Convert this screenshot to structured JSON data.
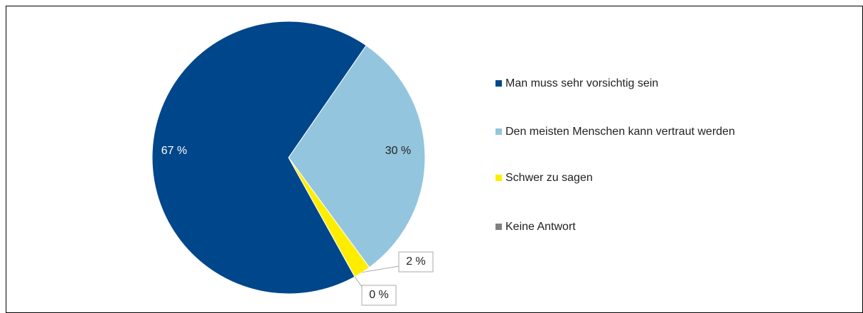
{
  "chart_data": {
    "type": "pie",
    "series": [
      {
        "name": "Man muss sehr vorsichtig sein",
        "color": "#00468b",
        "values": [
          67
        ],
        "value_labels": [
          "67 %"
        ]
      },
      {
        "name": "Den meisten Menschen kann vertraut werden",
        "color": "#93c5de",
        "values": [
          30
        ],
        "value_labels": [
          "30 %"
        ]
      },
      {
        "name": "Schwer zu sagen",
        "color": "#ffed00",
        "values": [
          2
        ],
        "value_labels": [
          "2 %"
        ]
      },
      {
        "name": "Keine Antwort",
        "color": "#808080",
        "values": [
          0
        ],
        "value_labels": [
          "0 %"
        ]
      }
    ],
    "legend": "right"
  }
}
